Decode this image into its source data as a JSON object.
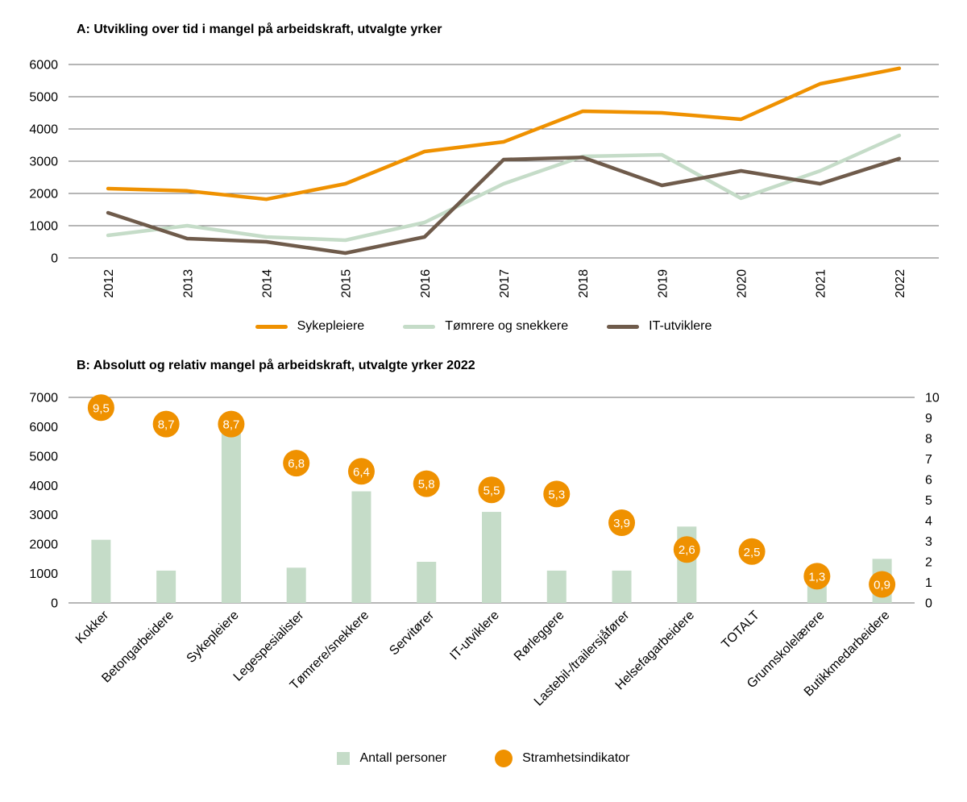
{
  "chart_data": [
    {
      "type": "line",
      "title": "A: Utvikling over tid i mangel på arbeidskraft, utvalgte yrker",
      "x": [
        2012,
        2013,
        2014,
        2015,
        2016,
        2017,
        2018,
        2019,
        2020,
        2021,
        2022
      ],
      "series": [
        {
          "name": "Sykepleiere",
          "color": "#EF9100",
          "values": [
            2150,
            2080,
            1820,
            2300,
            3300,
            3600,
            4550,
            4500,
            4300,
            5400,
            5880
          ]
        },
        {
          "name": "Tømrere og snekkere",
          "color": "#C5DCC8",
          "values": [
            700,
            1000,
            650,
            550,
            1100,
            2300,
            3150,
            3200,
            1850,
            2700,
            3800
          ]
        },
        {
          "name": "IT-utviklere",
          "color": "#6F5B4B",
          "values": [
            1400,
            600,
            500,
            150,
            650,
            3050,
            3120,
            2250,
            2700,
            2300,
            3080
          ]
        }
      ],
      "ylim": [
        0,
        6000
      ],
      "yticks": [
        0,
        1000,
        2000,
        3000,
        4000,
        5000,
        6000
      ],
      "grid": true,
      "legend_position": "bottom"
    },
    {
      "type": "bar",
      "title": "B: Absolutt og relativ mangel på arbeidskraft, utvalgte yrker 2022",
      "categories": [
        "Kokker",
        "Betongarbeidere",
        "Sykepleiere",
        "Legespesialister",
        "Tømrere/snekkere",
        "Servitører",
        "IT-utviklere",
        "Rørleggere",
        "Lastebil-/trailersjåfører",
        "Helsefagarbeidere",
        "TOTALT",
        "Grunnskolelærere",
        "Butikkmedarbeidere"
      ],
      "bars": {
        "name": "Antall personer",
        "color": "#C5DCC8",
        "values": [
          2150,
          1100,
          5900,
          1200,
          3800,
          1400,
          3100,
          1100,
          1100,
          2600,
          null,
          1100,
          1500
        ]
      },
      "markers": {
        "name": "Stramhetsindikator",
        "color": "#EF9100",
        "values": [
          9.5,
          8.7,
          8.7,
          6.8,
          6.4,
          5.8,
          5.5,
          5.3,
          3.9,
          2.6,
          2.5,
          1.3,
          0.9
        ],
        "labels": [
          "9,5",
          "8,7",
          "8,7",
          "6,8",
          "6,4",
          "5,8",
          "5,5",
          "5,3",
          "3,9",
          "2,6",
          "2,5",
          "1,3",
          "0,9"
        ]
      },
      "left_ylim": [
        0,
        7000
      ],
      "left_yticks": [
        0,
        1000,
        2000,
        3000,
        4000,
        5000,
        6000,
        7000
      ],
      "right_ylim": [
        0,
        10
      ],
      "right_yticks": [
        0,
        1,
        2,
        3,
        4,
        5,
        6,
        7,
        8,
        9,
        10
      ],
      "grid": false,
      "legend_position": "bottom"
    }
  ],
  "colors": {
    "grid": "#6E6E6E",
    "text": "#000000",
    "marker_label": "#FFFFFF"
  }
}
